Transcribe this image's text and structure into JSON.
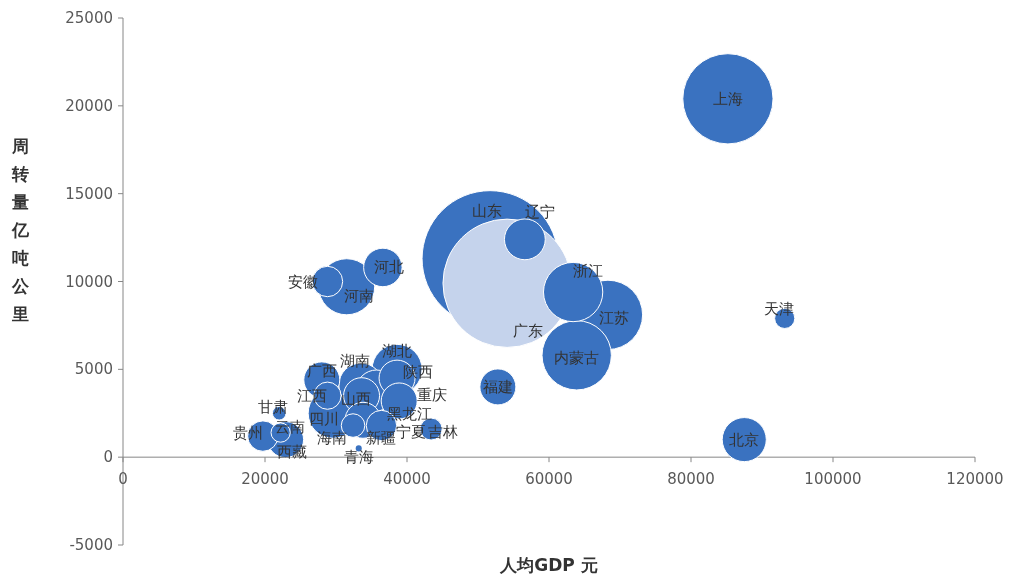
{
  "chart_data": {
    "type": "bubble",
    "xlabel": "人均GDP 元",
    "ylabel": "周转量亿吨公里",
    "xlim": [
      0,
      120000
    ],
    "ylim": [
      -5000,
      25000
    ],
    "xticks": [
      0,
      20000,
      40000,
      60000,
      80000,
      100000,
      120000
    ],
    "yticks": [
      -5000,
      0,
      5000,
      10000,
      15000,
      20000,
      25000
    ],
    "grid": false,
    "series": [
      {
        "name": "山东",
        "color": "#3a72c0",
        "x": [
          51700
        ],
        "values": [
          11300
        ],
        "sizes": [
          1
        ]
      },
      {
        "name": "广东",
        "color": "#c5d3ec",
        "x": [
          54100
        ],
        "values": [
          9900
        ],
        "sizes": [
          0.89
        ]
      },
      {
        "name": "辽宁",
        "color": "#3a72c0",
        "x": [
          56600
        ],
        "values": [
          12400
        ],
        "sizes": [
          0.09
        ]
      },
      {
        "name": "上海",
        "color": "#3a72c0",
        "x": [
          85200
        ],
        "values": [
          20400
        ],
        "sizes": [
          0.44
        ]
      },
      {
        "name": "江苏",
        "color": "#3a72c0",
        "x": [
          68300
        ],
        "values": [
          8100
        ],
        "sizes": [
          0.26
        ]
      },
      {
        "name": "内蒙古",
        "color": "#3a72c0",
        "x": [
          63900
        ],
        "values": [
          5800
        ],
        "sizes": [
          0.26
        ]
      },
      {
        "name": "浙江",
        "color": "#3a72c0",
        "x": [
          63400
        ],
        "values": [
          9400
        ],
        "sizes": [
          0.19
        ]
      },
      {
        "name": "北京",
        "color": "#3a72c0",
        "x": [
          87500
        ],
        "values": [
          1000
        ],
        "sizes": [
          0.105
        ]
      },
      {
        "name": "天津",
        "color": "#3a72c0",
        "x": [
          93200
        ],
        "values": [
          7900
        ],
        "sizes": [
          0.022
        ]
      },
      {
        "name": "安徽",
        "color": "#3a72c0",
        "x": [
          28800
        ],
        "values": [
          10000
        ],
        "sizes": [
          0.05
        ]
      },
      {
        "name": "河南",
        "color": "#3a72c0",
        "x": [
          31500
        ],
        "values": [
          9700
        ],
        "sizes": [
          0.17
        ]
      },
      {
        "name": "河北",
        "color": "#3a72c0",
        "x": [
          36600
        ],
        "values": [
          10800
        ],
        "sizes": [
          0.08
        ]
      },
      {
        "name": "湖北",
        "color": "#3a72c0",
        "x": [
          38600
        ],
        "values": [
          5000
        ],
        "sizes": [
          0.135
        ]
      },
      {
        "name": "陕西",
        "color": "#3a72c0",
        "x": [
          38600
        ],
        "values": [
          4500
        ],
        "sizes": [
          0.07
        ]
      },
      {
        "name": "广西",
        "color": "#3a72c0",
        "x": [
          28000
        ],
        "values": [
          4400
        ],
        "sizes": [
          0.07
        ]
      },
      {
        "name": "湖南",
        "color": "#3a72c0",
        "x": [
          33500
        ],
        "values": [
          4100
        ],
        "sizes": [
          0.105
        ]
      },
      {
        "name": "江西",
        "color": "#3a72c0",
        "x": [
          28800
        ],
        "values": [
          3500
        ],
        "sizes": [
          0.04
        ]
      },
      {
        "name": "四川",
        "color": "#3a72c0",
        "x": [
          29600
        ],
        "values": [
          2500
        ],
        "sizes": [
          0.135
        ]
      },
      {
        "name": "山西",
        "color": "#3a72c0",
        "x": [
          33600
        ],
        "values": [
          3500
        ],
        "sizes": [
          0.07
        ]
      },
      {
        "name": "黑龙江",
        "color": "#3a72c0",
        "x": [
          35700
        ],
        "values": [
          3800
        ],
        "sizes": [
          0.09
        ]
      },
      {
        "name": "重庆",
        "color": "#3a72c0",
        "x": [
          38900
        ],
        "values": [
          3200
        ],
        "sizes": [
          0.07
        ]
      },
      {
        "name": "新疆",
        "color": "#3a72c0",
        "x": [
          33800
        ],
        "values": [
          2100
        ],
        "sizes": [
          0.07
        ]
      },
      {
        "name": "宁夏",
        "color": "#3a72c0",
        "x": [
          36400
        ],
        "values": [
          1800
        ],
        "sizes": [
          0.05
        ]
      },
      {
        "name": "海南",
        "color": "#3a72c0",
        "x": [
          32400
        ],
        "values": [
          1800
        ],
        "sizes": [
          0.03
        ]
      },
      {
        "name": "青海",
        "color": "#3a72c0",
        "x": [
          33200
        ],
        "values": [
          500
        ],
        "sizes": [
          0.002
        ]
      },
      {
        "name": "吉林",
        "color": "#3a72c0",
        "x": [
          43400
        ],
        "values": [
          1600
        ],
        "sizes": [
          0.026
        ]
      },
      {
        "name": "福建",
        "color": "#3a72c0",
        "x": [
          52800
        ],
        "values": [
          4000
        ],
        "sizes": [
          0.07
        ]
      },
      {
        "name": "贵州",
        "color": "#3a72c0",
        "x": [
          19700
        ],
        "values": [
          1200
        ],
        "sizes": [
          0.05
        ]
      },
      {
        "name": "西藏",
        "color": "#3a72c0",
        "x": [
          22900
        ],
        "values": [
          1000
        ],
        "sizes": [
          0.07
        ]
      },
      {
        "name": "甘肃",
        "color": "#3a72c0",
        "x": [
          22000
        ],
        "values": [
          2500
        ],
        "sizes": [
          0.01
        ]
      },
      {
        "name": "云南",
        "color": "#3a72c0",
        "x": [
          22200
        ],
        "values": [
          1400
        ],
        "sizes": [
          0.02
        ]
      }
    ]
  }
}
